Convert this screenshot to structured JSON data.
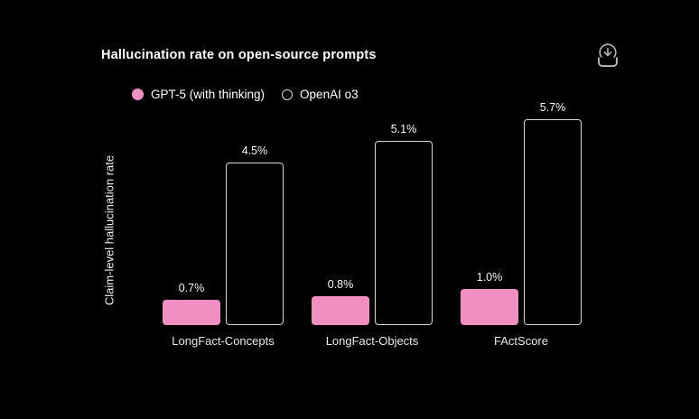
{
  "header": {
    "title": "Hallucination rate on open-source prompts"
  },
  "toolbar": {
    "download_icon": "download-icon"
  },
  "colors": {
    "background": "#000000",
    "gpt5_pink": "#f18fc3",
    "o3_outline": "#ddd6cc",
    "text_primary": "#ffffff",
    "text_secondary": "#e8e8e8",
    "icon_gray": "#b9b9b9"
  },
  "chart_data": {
    "type": "bar",
    "title": "Hallucination rate on open-source prompts",
    "xlabel": "",
    "ylabel": "Claim-level hallucination rate",
    "categories": [
      "LongFact-Concepts",
      "LongFact-Objects",
      "FActScore"
    ],
    "series": [
      {
        "name": "GPT-5 (with thinking)",
        "style": "filled",
        "color": "#f18fc3",
        "values": [
          0.7,
          0.8,
          1.0
        ],
        "value_labels": [
          "0.7%",
          "0.8%",
          "1.0%"
        ]
      },
      {
        "name": "OpenAI o3",
        "style": "outlined",
        "color": "#ddd6cc",
        "values": [
          4.5,
          5.1,
          5.7
        ],
        "value_labels": [
          "4.5%",
          "5.1%",
          "5.7%"
        ]
      }
    ],
    "ylim": [
      0,
      6
    ],
    "grid": false,
    "legend_position": "top-left",
    "value_labels_shown": true
  }
}
